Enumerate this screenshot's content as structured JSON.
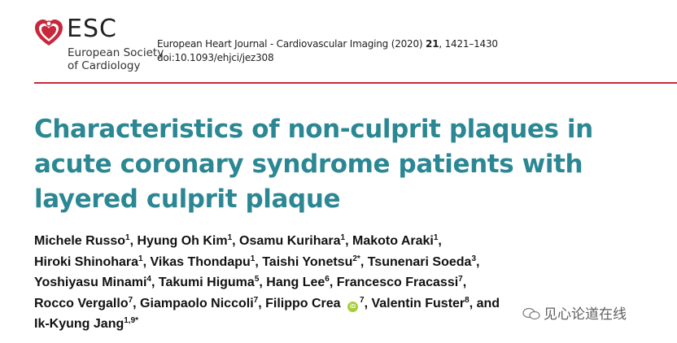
{
  "logo": {
    "abbr": "ESC",
    "name_line1": "European Society",
    "name_line2": "of Cardiology",
    "color": "#c8283c"
  },
  "journal": {
    "name": "European Heart Journal - Cardiovascular Imaging (2020)",
    "volume": "21",
    "pages": ", 1421–1430",
    "doi": "doi:10.1093/ehjci/jez308"
  },
  "title": "Characteristics of non-culprit plaques in acute coronary syndrome patients with layered culprit plaque",
  "title_lines": [
    "Characteristics of non-culprit plaques in",
    "acute coronary syndrome patients with",
    "layered culprit plaque"
  ],
  "authors": [
    {
      "name": "Michele Russo",
      "sup": "1",
      "sep": ", "
    },
    {
      "name": "Hyung Oh Kim",
      "sup": "1",
      "sep": ", "
    },
    {
      "name": "Osamu Kurihara",
      "sup": "1",
      "sep": ", "
    },
    {
      "name": "Makoto Araki",
      "sup": "1",
      "sep": ",",
      "br": true
    },
    {
      "name": "Hiroki Shinohara",
      "sup": "1",
      "sep": ", "
    },
    {
      "name": "Vikas Thondapu",
      "sup": "1",
      "sep": ", "
    },
    {
      "name": "Taishi Yonetsu",
      "sup": "2*",
      "sep": ", "
    },
    {
      "name": "Tsunenari Soeda",
      "sup": "3",
      "sep": ",",
      "br": true
    },
    {
      "name": "Yoshiyasu Minami",
      "sup": "4",
      "sep": ", "
    },
    {
      "name": "Takumi Higuma",
      "sup": "5",
      "sep": ", "
    },
    {
      "name": "Hang Lee",
      "sup": "6",
      "sep": ", "
    },
    {
      "name": "Francesco Fracassi",
      "sup": "7",
      "sep": ",",
      "br": true
    },
    {
      "name": "Rocco Vergallo",
      "sup": "7",
      "sep": ", "
    },
    {
      "name": "Giampaolo Niccoli",
      "sup": "7",
      "sep": ", "
    },
    {
      "name": "Filippo Crea",
      "sup": "7",
      "orcid": true,
      "sep": ", "
    },
    {
      "name": "Valentin Fuster",
      "sup": "8",
      "sep": ", and",
      "br": true
    },
    {
      "name": "Ik-Kyung Jang",
      "sup": "1,9*",
      "sep": ""
    }
  ],
  "orcid_label": "iD",
  "watermark": "见心论道在线"
}
